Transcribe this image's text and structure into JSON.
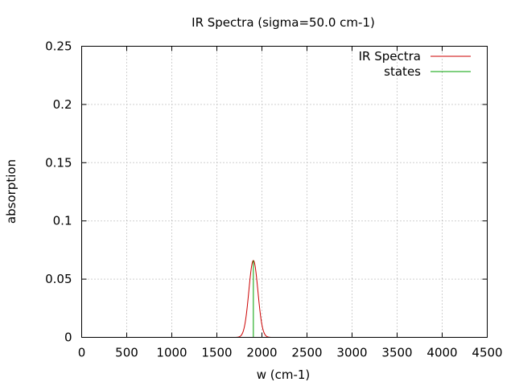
{
  "chart_data": {
    "type": "line",
    "title": "IR Spectra (sigma=50.0 cm-1)",
    "xlabel": "w (cm-1)",
    "ylabel": "absorption",
    "xlim": [
      0,
      4500
    ],
    "ylim": [
      0,
      0.25
    ],
    "x_ticks": [
      0,
      500,
      1000,
      1500,
      2000,
      2500,
      3000,
      3500,
      4000,
      4500
    ],
    "x_tick_labels": [
      "0",
      "500",
      "1000",
      "1500",
      "2000",
      "2500",
      "3000",
      "3500",
      "4000",
      "4500"
    ],
    "y_ticks": [
      0,
      0.05,
      0.1,
      0.15,
      0.2,
      0.25
    ],
    "y_tick_labels": [
      "0",
      "0.05",
      "0.1",
      "0.15",
      "0.2",
      "0.25"
    ],
    "grid": true,
    "legend_position": "top-right",
    "series": [
      {
        "name": "IR Spectra",
        "color": "#cc0000",
        "kind": "gaussian",
        "center": 1905,
        "sigma": 50.0,
        "amplitude": 0.066
      },
      {
        "name": "states",
        "color": "#00a000",
        "kind": "stick",
        "x": [
          1905
        ],
        "y": [
          0.066
        ]
      }
    ]
  }
}
